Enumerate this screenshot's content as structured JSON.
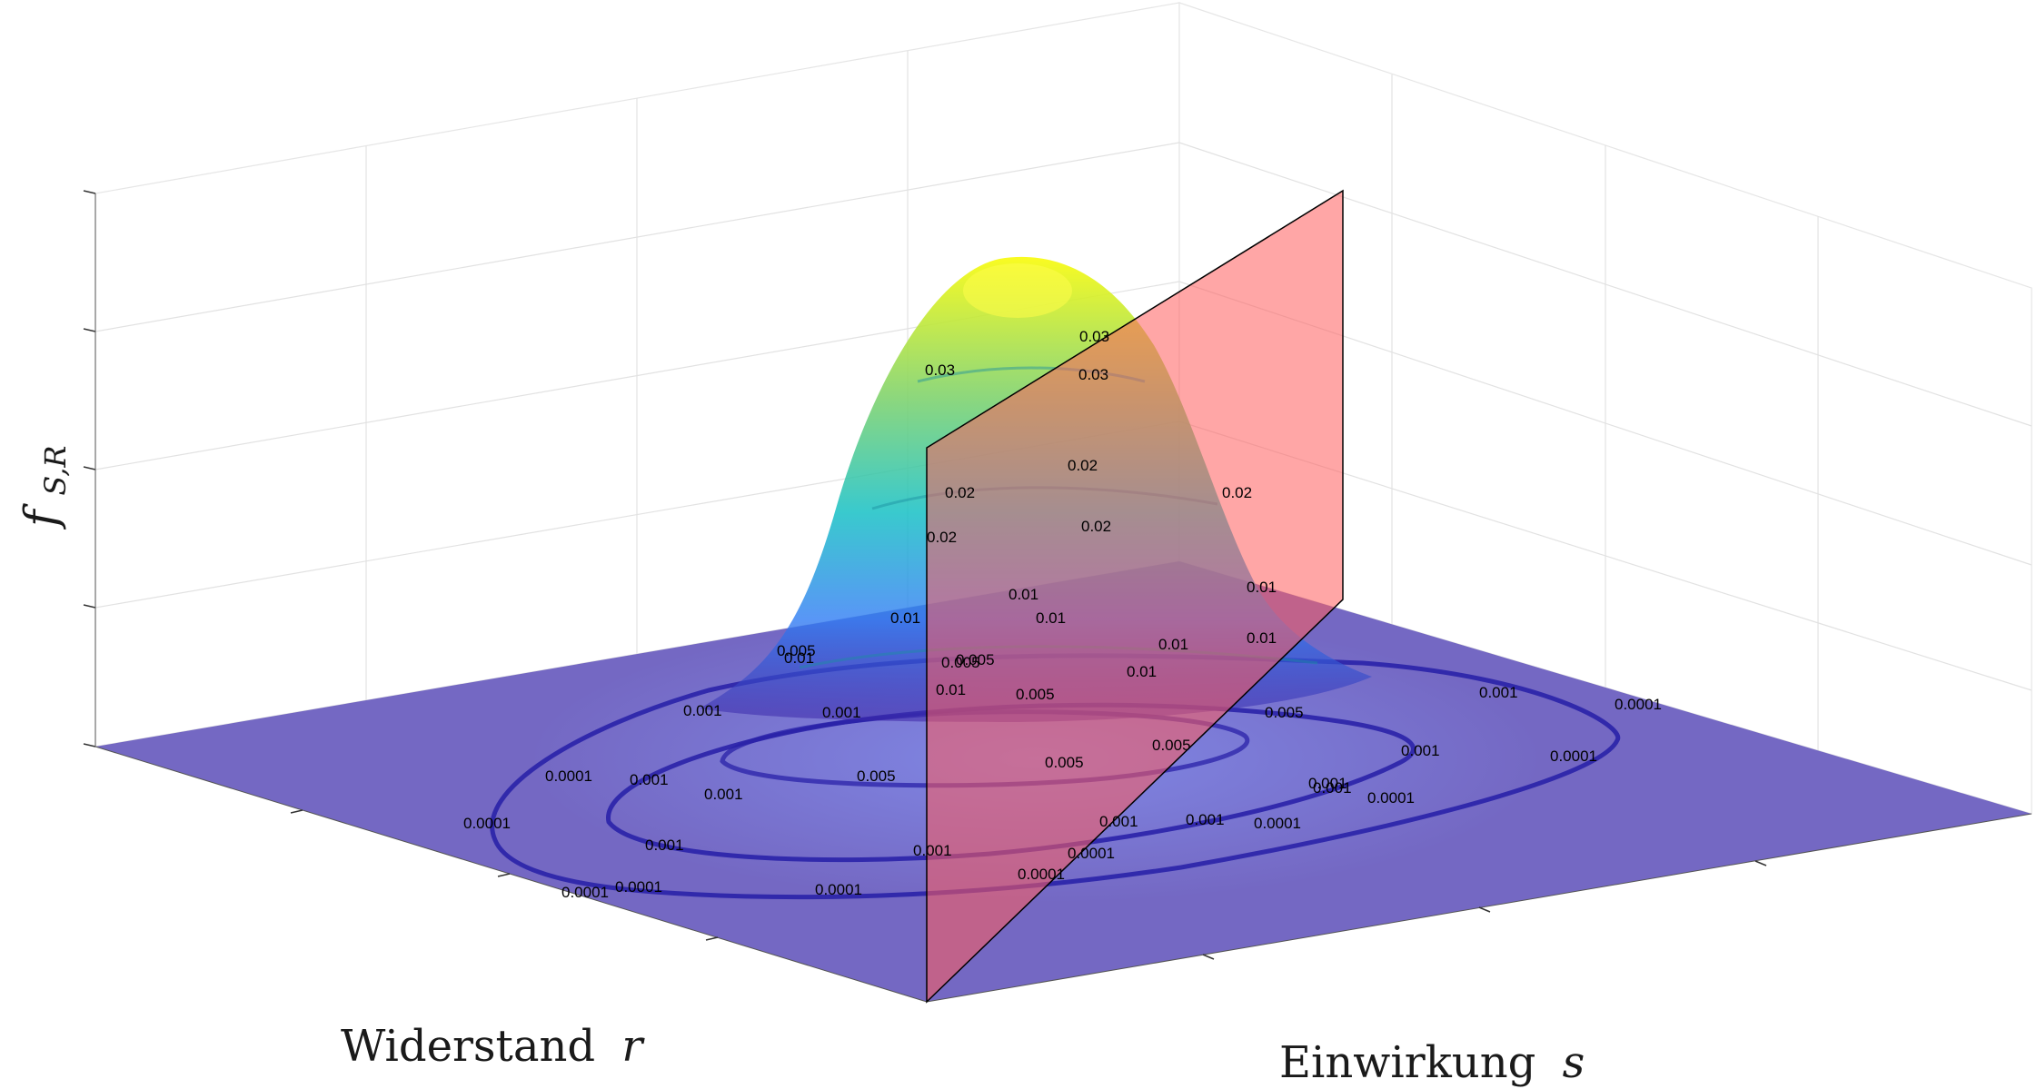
{
  "chart_data": {
    "type": "surface3d",
    "title": "",
    "axes": {
      "x_label_text": "Widerstand",
      "x_label_var": "r",
      "y_label_text": "Einwirkung",
      "y_label_var": "s",
      "z_label_main": "f",
      "z_label_sub": "S,R",
      "tick_labels_shown": false,
      "grid": true
    },
    "surface": {
      "description_free": true,
      "peak_density": 0.04,
      "colormap": [
        "#3e26a8",
        "#2f7cf4",
        "#16c0c5",
        "#7ed26a",
        "#f9fb0e"
      ]
    },
    "limit_state_plane": {
      "equation": "r = s",
      "color": "#ff5555",
      "opacity": 0.55
    },
    "contour_levels": [
      "0.0001",
      "0.001",
      "0.005",
      "0.01",
      "0.02",
      "0.03"
    ],
    "contour_labels": [
      {
        "t": "0.0001",
        "k": 0
      },
      {
        "t": "0.0001",
        "k": 1
      },
      {
        "t": "0.0001",
        "k": 2
      },
      {
        "t": "0.0001",
        "k": 3
      },
      {
        "t": "0.0001",
        "k": 4
      },
      {
        "t": "0.0001",
        "k": 5
      },
      {
        "t": "0.0001",
        "k": 6
      },
      {
        "t": "0.0001",
        "k": 7
      },
      {
        "t": "0.0001",
        "k": 8
      },
      {
        "t": "0.0001",
        "k": 9
      },
      {
        "t": "0.0001",
        "k": 10
      },
      {
        "t": "0.001",
        "k": 11
      },
      {
        "t": "0.001",
        "k": 12
      },
      {
        "t": "0.001",
        "k": 13
      },
      {
        "t": "0.001",
        "k": 14
      },
      {
        "t": "0.001",
        "k": 15
      },
      {
        "t": "0.001",
        "k": 16
      },
      {
        "t": "0.001",
        "k": 17
      },
      {
        "t": "0.001",
        "k": 18
      },
      {
        "t": "0.001",
        "k": 19
      },
      {
        "t": "0.001",
        "k": 20
      },
      {
        "t": "0.001",
        "k": 21
      },
      {
        "t": "0.001",
        "k": 22
      },
      {
        "t": "0.005",
        "k": 23
      },
      {
        "t": "0.005",
        "k": 24
      },
      {
        "t": "0.005",
        "k": 25
      },
      {
        "t": "0.005",
        "k": 26
      },
      {
        "t": "0.005",
        "k": 27
      },
      {
        "t": "0.005",
        "k": 28
      },
      {
        "t": "0.005",
        "k": 29
      },
      {
        "t": "0.005",
        "k": 30
      },
      {
        "t": "0.01",
        "k": 31
      },
      {
        "t": "0.01",
        "k": 32
      },
      {
        "t": "0.01",
        "k": 33
      },
      {
        "t": "0.01",
        "k": 34
      },
      {
        "t": "0.01",
        "k": 35
      },
      {
        "t": "0.01",
        "k": 36
      },
      {
        "t": "0.01",
        "k": 37
      },
      {
        "t": "0.01",
        "k": 38
      },
      {
        "t": "0.01",
        "k": 39
      },
      {
        "t": "0.02",
        "k": 40
      },
      {
        "t": "0.02",
        "k": 41
      },
      {
        "t": "0.02",
        "k": 42
      },
      {
        "t": "0.02",
        "k": 43
      },
      {
        "t": "0.02",
        "k": 44
      },
      {
        "t": "0.03",
        "k": 45
      },
      {
        "t": "0.03",
        "k": 46
      },
      {
        "t": "0.03",
        "k": 47
      }
    ]
  }
}
